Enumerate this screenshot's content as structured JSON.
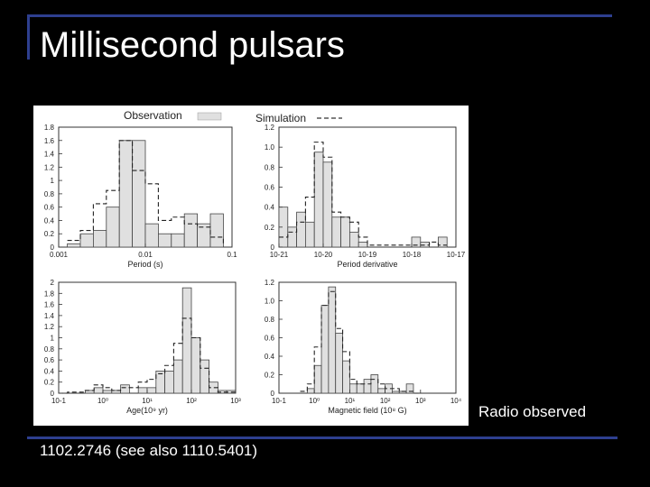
{
  "slide": {
    "title": "Millisecond pulsars",
    "caption": "Radio observed",
    "reference": "1102.2746 (see also 1110.5401)"
  },
  "legend": {
    "observation": "Observation",
    "simulation": "Simulation"
  },
  "colors": {
    "background": "#000000",
    "rule": "#2e3f8f",
    "obs_fill": "#e0e0e0",
    "text": "#ffffff"
  },
  "chart_data": [
    {
      "type": "bar",
      "scale": "log",
      "xlabel": "Period (s)",
      "xticks": [
        {
          "v": -3,
          "l": "0.001"
        },
        {
          "v": -2,
          "l": "0.01"
        },
        {
          "v": -1,
          "l": "0.1"
        }
      ],
      "xlim": [
        -3,
        -1
      ],
      "yticks": [
        "0",
        "0.2",
        "0.4",
        "0.6",
        "0.8",
        "1",
        "1.2",
        "1.4",
        "1.6",
        "1.8"
      ],
      "ylim": [
        0,
        1.8
      ],
      "bin_edges": [
        -2.9,
        -2.75,
        -2.6,
        -2.45,
        -2.3,
        -2.15,
        -2.0,
        -1.85,
        -1.7,
        -1.55,
        -1.4,
        -1.25,
        -1.1
      ],
      "observation": [
        0.05,
        0.2,
        0.25,
        0.6,
        1.6,
        1.6,
        0.35,
        0.2,
        0.2,
        0.5,
        0.35,
        0.5,
        0.15
      ],
      "simulation": [
        0.1,
        0.25,
        0.65,
        0.85,
        1.6,
        1.15,
        0.95,
        0.4,
        0.45,
        0.35,
        0.3,
        0.15,
        0.05
      ]
    },
    {
      "type": "bar",
      "scale": "log",
      "xlabel": "Period derivative",
      "xticks": [
        {
          "v": -21,
          "l": "10-21"
        },
        {
          "v": -20,
          "l": "10-20"
        },
        {
          "v": -19,
          "l": "10-19"
        },
        {
          "v": -18,
          "l": "10-18"
        },
        {
          "v": -17,
          "l": "10-17"
        }
      ],
      "xlim": [
        -21,
        -17
      ],
      "yticks": [
        "0",
        "0.2",
        "0.4",
        "0.6",
        "0.8",
        "1.0",
        "1.2"
      ],
      "ylim": [
        0,
        1.2
      ],
      "bin_edges": [
        -21.0,
        -20.8,
        -20.6,
        -20.4,
        -20.2,
        -20.0,
        -19.8,
        -19.6,
        -19.4,
        -19.2,
        -19.0,
        -18.8,
        -18.6,
        -18.4,
        -18.2,
        -18.0,
        -17.8,
        -17.6,
        -17.4,
        -17.2
      ],
      "observation": [
        0.4,
        0.2,
        0.35,
        0.25,
        0.95,
        0.85,
        0.3,
        0.3,
        0.15,
        0.05,
        0.0,
        0.0,
        0.0,
        0.0,
        0.0,
        0.1,
        0.05,
        0.0,
        0.1
      ],
      "simulation": [
        0.1,
        0.15,
        0.25,
        0.5,
        1.05,
        0.9,
        0.35,
        0.3,
        0.25,
        0.1,
        0.02,
        0.02,
        0.02,
        0.02,
        0.02,
        0.02,
        0.02,
        0.05,
        0.02
      ]
    },
    {
      "type": "bar",
      "scale": "log",
      "xlabel": "Age(10⁹ yr)",
      "xticks": [
        {
          "v": -1,
          "l": "10-1"
        },
        {
          "v": 0,
          "l": "10⁰"
        },
        {
          "v": 1,
          "l": "10¹"
        },
        {
          "v": 2,
          "l": "10²"
        },
        {
          "v": 3,
          "l": "10³"
        }
      ],
      "xlim": [
        -1,
        3
      ],
      "yticks": [
        "0",
        "0.2",
        "0.4",
        "0.6",
        "0.8",
        "1",
        "1.2",
        "1.4",
        "1.6",
        "1.8",
        "2"
      ],
      "ylim": [
        0,
        2.0
      ],
      "bin_edges": [
        -1.0,
        -0.8,
        -0.6,
        -0.4,
        -0.2,
        0.0,
        0.2,
        0.4,
        0.6,
        0.8,
        1.0,
        1.2,
        1.4,
        1.6,
        1.8,
        2.0,
        2.2,
        2.4,
        2.6,
        2.8,
        3.0
      ],
      "observation": [
        0.0,
        0.0,
        0.0,
        0.05,
        0.1,
        0.05,
        0.05,
        0.15,
        0.0,
        0.1,
        0.1,
        0.4,
        0.4,
        0.6,
        1.9,
        1.0,
        0.6,
        0.2,
        0.05,
        0.05
      ],
      "simulation": [
        0.0,
        0.02,
        0.02,
        0.05,
        0.15,
        0.1,
        0.05,
        0.1,
        0.1,
        0.2,
        0.25,
        0.35,
        0.5,
        0.9,
        1.35,
        1.0,
        0.45,
        0.1,
        0.02,
        0.02
      ]
    },
    {
      "type": "bar",
      "scale": "log",
      "xlabel": "Magnetic field (10⁸ G)",
      "xticks": [
        {
          "v": -1,
          "l": "10-1"
        },
        {
          "v": 0,
          "l": "10⁰"
        },
        {
          "v": 1,
          "l": "10¹"
        },
        {
          "v": 2,
          "l": "10²"
        },
        {
          "v": 3,
          "l": "10³"
        },
        {
          "v": 4,
          "l": "10⁴"
        }
      ],
      "xlim": [
        -1,
        4
      ],
      "yticks": [
        "0",
        "0.2",
        "0.4",
        "0.6",
        "0.8",
        "1.0",
        "1.2"
      ],
      "ylim": [
        0,
        1.2
      ],
      "bin_edges": [
        -0.4,
        -0.2,
        0.0,
        0.2,
        0.4,
        0.6,
        0.8,
        1.0,
        1.2,
        1.4,
        1.6,
        1.8,
        2.0,
        2.2,
        2.4,
        2.6,
        2.8,
        3.0
      ],
      "observation": [
        0.0,
        0.05,
        0.3,
        0.95,
        1.15,
        0.65,
        0.35,
        0.1,
        0.1,
        0.15,
        0.2,
        0.05,
        0.1,
        0.02,
        0.02,
        0.1,
        0.0
      ],
      "simulation": [
        0.02,
        0.1,
        0.5,
        0.95,
        1.1,
        0.7,
        0.45,
        0.15,
        0.1,
        0.1,
        0.15,
        0.1,
        0.05,
        0.05,
        0.02,
        0.02,
        0.0
      ]
    }
  ]
}
